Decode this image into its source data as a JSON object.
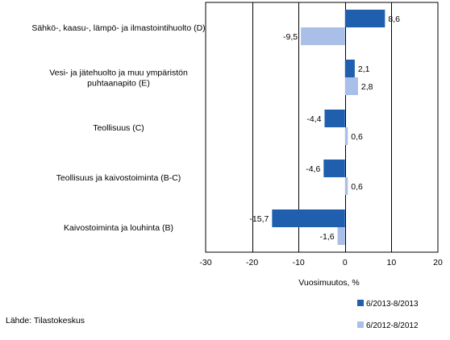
{
  "chart_data": {
    "type": "bar",
    "orientation": "horizontal",
    "categories": [
      [
        "Sähkö-, kaasu-, lämpö- ja ilmastointihuolto (D)"
      ],
      [
        "Vesi- ja jätehuolto ja muu ympäristön",
        "puhtaanapito (E)"
      ],
      [
        "Teollisuus (C)"
      ],
      [
        "Teollisuus ja kaivostoiminta (B-C)"
      ],
      [
        "Kaivostoiminta ja louhinta (B)"
      ]
    ],
    "series": [
      {
        "name": "6/2013-8/2013",
        "color": "#1f5fad",
        "values": [
          8.6,
          2.1,
          -4.4,
          -4.6,
          -15.7
        ],
        "labels": [
          "8,6",
          "2,1",
          "-4,4",
          "-4,6",
          "-15,7"
        ]
      },
      {
        "name": "6/2012-8/2012",
        "color": "#a9bfe8",
        "values": [
          -9.5,
          2.8,
          0.6,
          0.6,
          -1.6
        ],
        "labels": [
          "-9,5",
          "2,8",
          "0,6",
          "0,6",
          "-1,6"
        ]
      }
    ],
    "xlim": [
      -30,
      20
    ],
    "xticks": [
      -30,
      -20,
      -10,
      0,
      10,
      20
    ],
    "xtick_labels": [
      "-30",
      "-20",
      "-10",
      "0",
      "10",
      "20"
    ],
    "xlabel": "Vuosimuutos, %",
    "grid": true,
    "legend_position": "bottom-right"
  },
  "source": "Lähde: Tilastokeskus"
}
